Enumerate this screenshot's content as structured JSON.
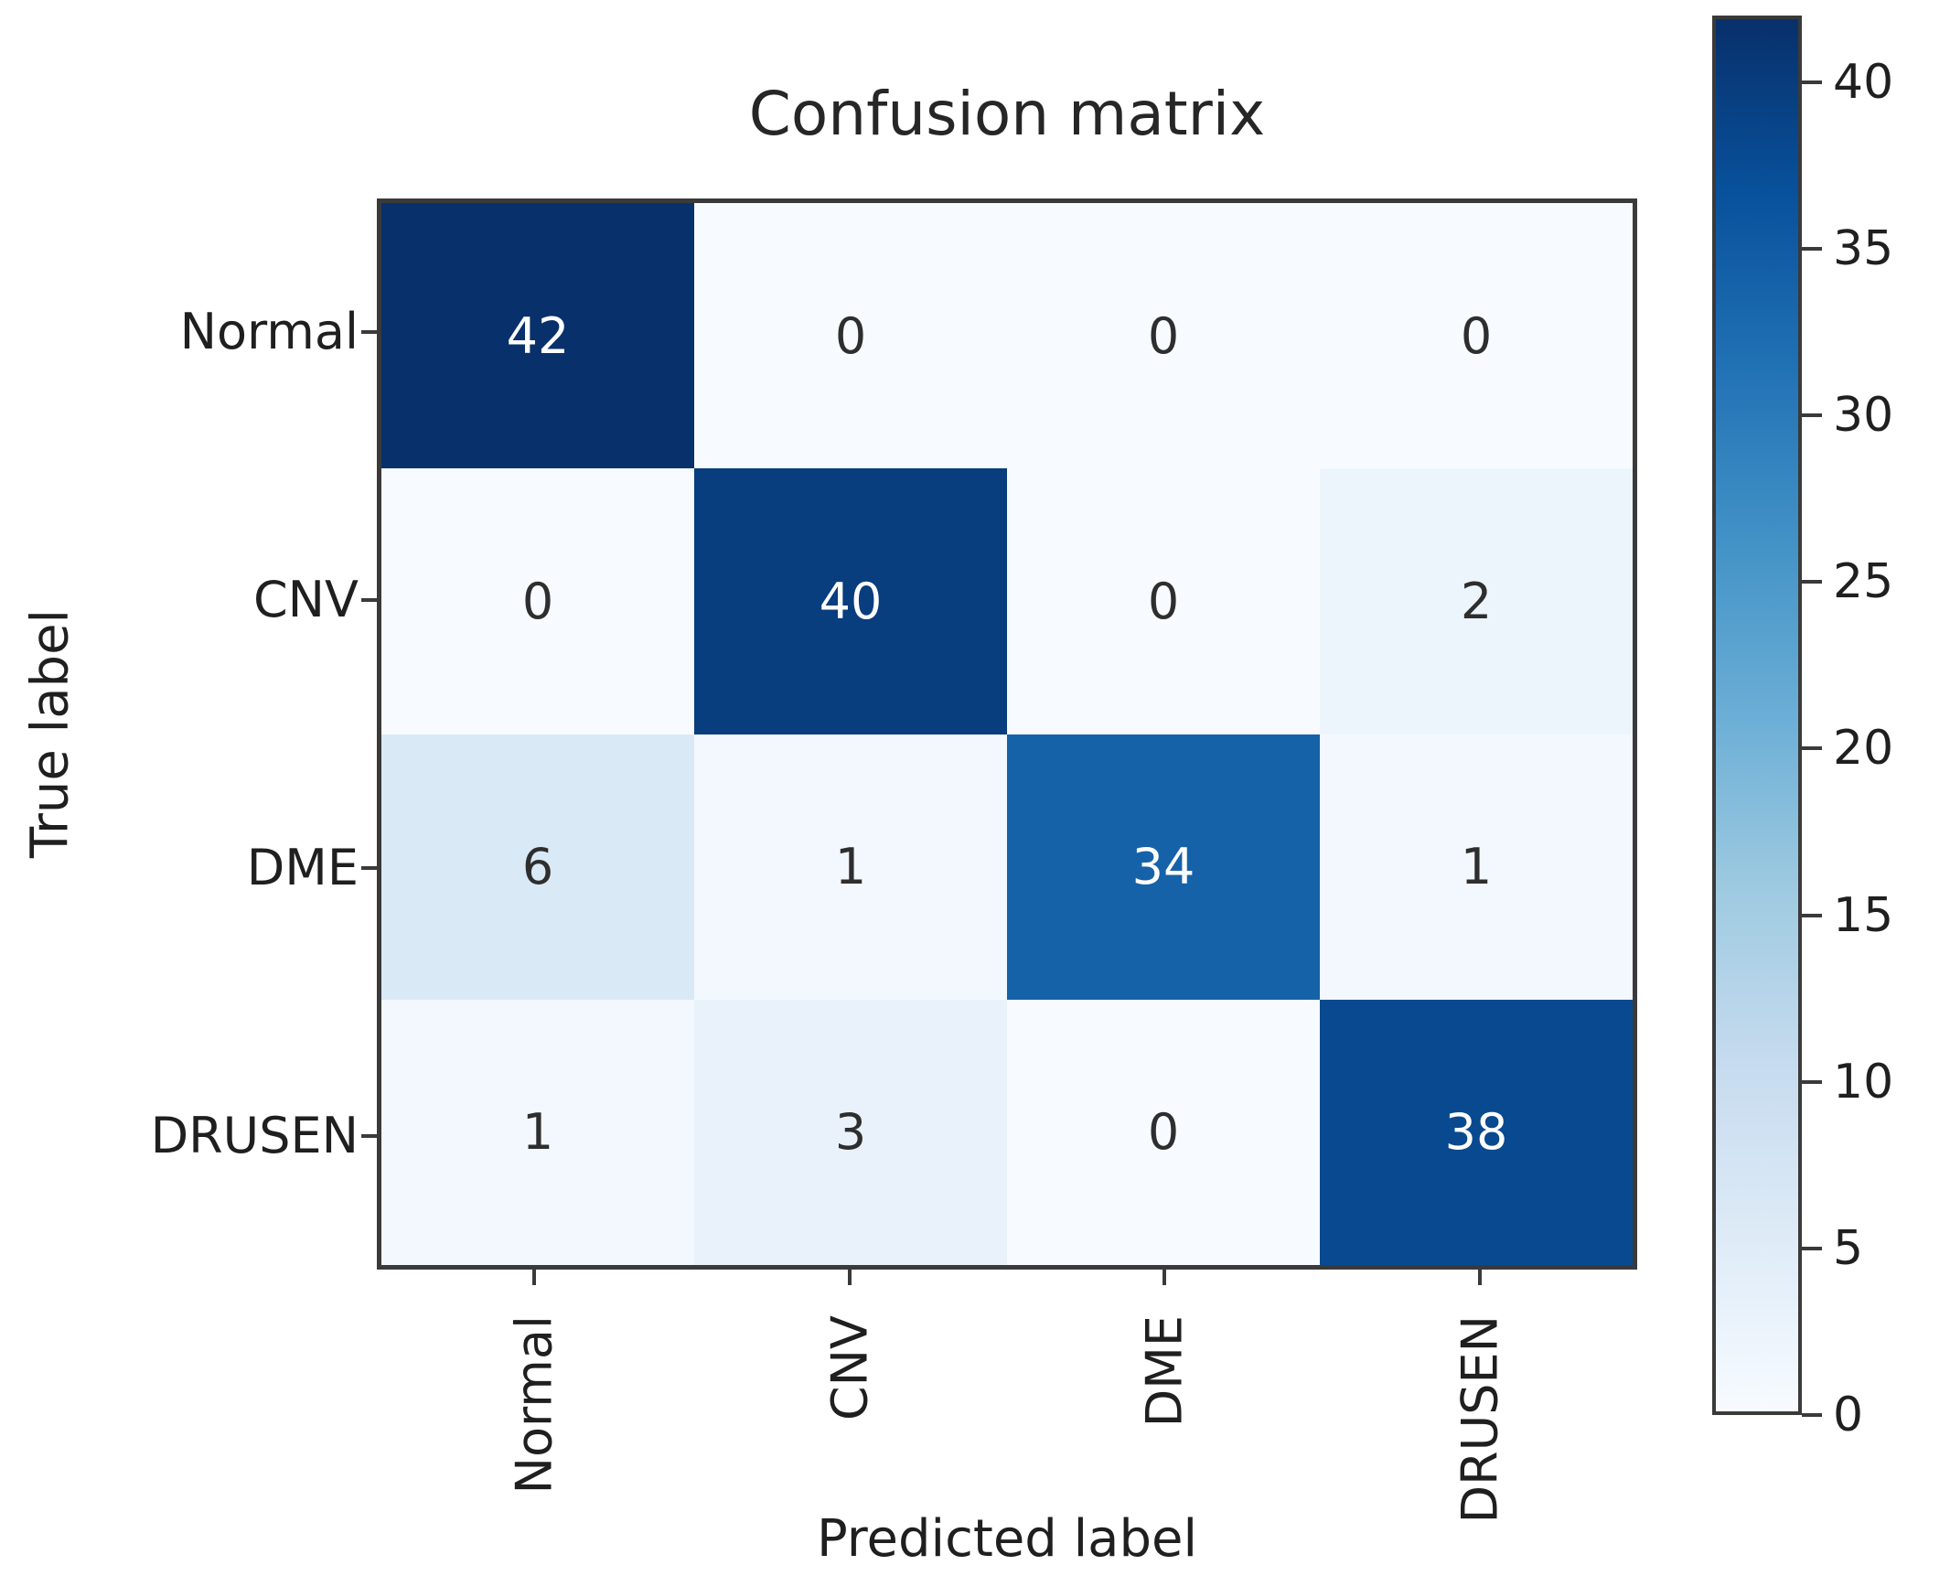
{
  "figure": {
    "title": "Confusion matrix"
  },
  "chart_data": {
    "type": "heatmap",
    "subtype": "confusion-matrix",
    "title": "Confusion matrix",
    "xlabel": "Predicted label",
    "ylabel": "True label",
    "categories": [
      "Normal",
      "CNV",
      "DME",
      "DRUSEN"
    ],
    "x_tick_labels": [
      "Normal",
      "CNV",
      "DME",
      "DRUSEN"
    ],
    "y_tick_labels": [
      "Normal",
      "CNV",
      "DME",
      "DRUSEN"
    ],
    "matrix": [
      [
        42,
        0,
        0,
        0
      ],
      [
        0,
        40,
        0,
        2
      ],
      [
        6,
        1,
        34,
        1
      ],
      [
        1,
        3,
        0,
        38
      ]
    ],
    "cell_colors": [
      [
        "#08306b",
        "#f7fbff",
        "#f7fbff",
        "#f7fbff"
      ],
      [
        "#f7fbff",
        "#083d7e",
        "#f7fbff",
        "#edf5fc"
      ],
      [
        "#dae9f6",
        "#f2f8fe",
        "#1562a9",
        "#f2f8fe"
      ],
      [
        "#f2f8fe",
        "#e9f2fa",
        "#f7fbff",
        "#084990"
      ]
    ],
    "colormap": "Blues",
    "vmin": 0,
    "vmax": 42,
    "white_text_threshold": 21,
    "text_colors": {
      "on_dark": "#ffffff",
      "on_light": "#2e2e2e"
    },
    "grid": false,
    "legend": false,
    "colorbar": {
      "ticks": [
        0,
        5,
        10,
        15,
        20,
        25,
        30,
        35,
        40
      ],
      "gradient_bottom_to_top": [
        "#f7fbff",
        "#deebf7",
        "#c6dbef",
        "#9ecae1",
        "#6baed6",
        "#4292c6",
        "#2171b5",
        "#08519c",
        "#08306b"
      ]
    }
  }
}
